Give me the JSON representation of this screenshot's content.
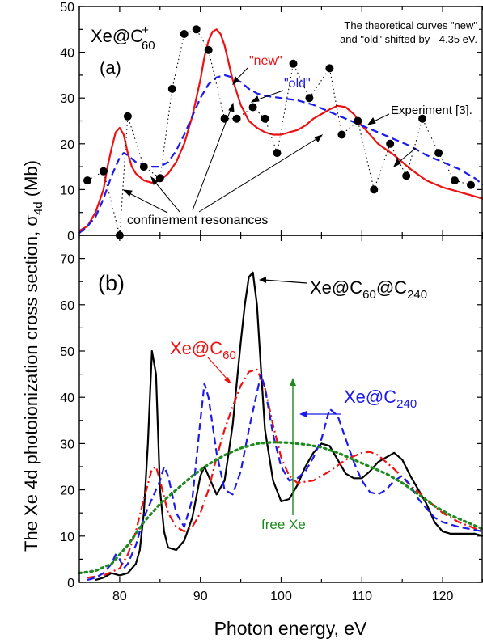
{
  "figure": {
    "ylabel_main": "The Xe 4d photoionization cross section, ",
    "ylabel_sigma": "σ",
    "ylabel_sub": "4d",
    "ylabel_unit": " (Mb)",
    "xlabel": "Photon energy, eV"
  },
  "chart_data": [
    {
      "type": "line",
      "panel_label": "(a)",
      "system_label": {
        "main": "Xe@C",
        "sub": "60",
        "sup": "+"
      },
      "note": [
        "The theoretical curves \"new\"",
        "and \"old\" shifted by - 4.35 eV."
      ],
      "xlim": [
        75,
        125
      ],
      "ylim": [
        0,
        50
      ],
      "x_ticks": [
        80,
        90,
        100,
        110,
        120
      ],
      "y_ticks": [
        0,
        10,
        20,
        30,
        40,
        50
      ],
      "legend": "inline labels",
      "grid": false,
      "series": [
        {
          "name": "\"new\"",
          "color": "#ee1111",
          "style": "solid",
          "x": [
            75,
            76,
            77,
            78,
            78.5,
            79,
            79.5,
            80,
            80.5,
            81,
            81.5,
            82,
            83,
            84,
            85,
            86,
            87,
            88,
            89,
            90,
            90.5,
            91,
            91.5,
            92,
            92.5,
            93,
            94,
            95,
            96,
            97,
            98,
            99,
            100,
            101,
            102,
            103,
            104,
            105,
            106,
            107,
            108,
            109,
            110,
            112,
            114,
            116,
            118,
            120,
            122,
            125
          ],
          "y": [
            1,
            2,
            5,
            10,
            15,
            19,
            22.5,
            23.5,
            22,
            18,
            15,
            13.5,
            12,
            11.5,
            12,
            13.5,
            16,
            20,
            26,
            34,
            39,
            42.5,
            44.5,
            45,
            44,
            41.5,
            34,
            28.5,
            25,
            23.5,
            22.5,
            22,
            22,
            22.5,
            23,
            24,
            25.5,
            26.5,
            27.5,
            28.3,
            28,
            26.5,
            24,
            20,
            17.5,
            14.5,
            12,
            10.5,
            9.5,
            8
          ]
        },
        {
          "name": "\"old\"",
          "color": "#1a1aee",
          "style": "dashed",
          "x": [
            75,
            76,
            77,
            78,
            79,
            80,
            80.5,
            81,
            82,
            83,
            84,
            85,
            86,
            87,
            88,
            89,
            90,
            91,
            92,
            93,
            94,
            95,
            96,
            97,
            98,
            100,
            102,
            104,
            106,
            108,
            110,
            112,
            114,
            116,
            118,
            120,
            122,
            124,
            125
          ],
          "y": [
            0.5,
            2,
            4,
            8,
            13,
            17,
            18,
            17.5,
            16,
            15.5,
            15,
            15,
            16,
            18.5,
            22,
            26,
            30,
            33,
            34.5,
            35,
            34.5,
            33.5,
            32,
            31,
            30.5,
            30,
            29.5,
            28.5,
            27,
            25.5,
            24,
            22.5,
            21,
            19.5,
            17.5,
            16,
            14.5,
            12.5,
            11
          ]
        },
        {
          "name": "Experiment [3].",
          "color": "#000000",
          "style": "dotted-markers",
          "x": [
            76,
            78,
            80,
            81,
            83,
            85,
            86.5,
            88,
            89.5,
            91,
            93,
            94.5,
            96.5,
            98,
            99.5,
            101.5,
            103.5,
            106,
            107.5,
            109.5,
            111.5,
            113.5,
            115.5,
            117.5,
            119.5,
            121.5,
            123.5
          ],
          "y": [
            12,
            14,
            0,
            26,
            15,
            12.5,
            32,
            44,
            45,
            40.5,
            25.5,
            25.5,
            28,
            25.5,
            18,
            37.5,
            30,
            36.5,
            22,
            25,
            10,
            20,
            13,
            25.5,
            18,
            12,
            11
          ]
        }
      ],
      "annotations": [
        {
          "text": "\"new\"",
          "color": "#ee1111"
        },
        {
          "text": "\"old\"",
          "color": "#1a1aee"
        },
        {
          "text": "Experiment [3].",
          "color": "#000000"
        },
        {
          "text": "confinement resonances",
          "color": "#000000"
        }
      ]
    },
    {
      "type": "line",
      "panel_label": "(b)",
      "xlim": [
        75,
        125
      ],
      "ylim": [
        0,
        75
      ],
      "x_ticks": [
        80,
        90,
        100,
        110,
        120
      ],
      "y_ticks": [
        0,
        10,
        20,
        30,
        40,
        50,
        60,
        70
      ],
      "legend": "inline labels",
      "grid": false,
      "series": [
        {
          "name": "Xe@C60@C240",
          "label": {
            "main": "Xe@C",
            "sub1": "60",
            "mid": "@C",
            "sub2": "240"
          },
          "color": "#000000",
          "style": "solid",
          "x": [
            77,
            78,
            79,
            80,
            81,
            82,
            82.5,
            83,
            83.5,
            84,
            84.5,
            85,
            85.5,
            86,
            87,
            88,
            89,
            90,
            90.5,
            91,
            92,
            93,
            94,
            95,
            95.5,
            96,
            96.5,
            97,
            97.5,
            98,
            99,
            100,
            101,
            102,
            103,
            104,
            105,
            106,
            107,
            108,
            109,
            110,
            111,
            112,
            113,
            114,
            115,
            116,
            117,
            118,
            119,
            120,
            121,
            122,
            123,
            124,
            125
          ],
          "y": [
            0.5,
            1,
            2,
            1.5,
            2,
            4,
            7,
            15,
            30,
            50,
            45,
            20,
            11,
            7.5,
            7,
            9,
            14,
            23,
            25,
            23,
            19,
            22,
            34,
            52,
            60,
            66,
            67,
            60,
            46,
            33,
            22,
            17.5,
            18,
            21,
            25,
            28,
            30,
            29.5,
            26.5,
            23.5,
            22.5,
            22.5,
            24,
            26,
            27,
            28,
            26.5,
            23,
            20,
            17,
            13,
            11,
            10.5,
            10.5,
            10.5,
            10.5,
            10
          ]
        },
        {
          "name": "Xe@C60",
          "label": {
            "main": "Xe@C",
            "sub": "60"
          },
          "color": "#ee1111",
          "style": "dashdot",
          "x": [
            76,
            78,
            80,
            81,
            82,
            83,
            84,
            84.5,
            85,
            86,
            87,
            88,
            89,
            90,
            91,
            92,
            93,
            94,
            95,
            96,
            97,
            98,
            99,
            100,
            101,
            102,
            104,
            106,
            108,
            110,
            111,
            112,
            114,
            116,
            118,
            120,
            122,
            125
          ],
          "y": [
            1,
            1.5,
            3,
            6,
            11,
            18,
            24.5,
            25,
            22,
            15,
            12,
            11,
            12,
            15,
            20,
            27,
            33,
            38,
            42.5,
            45.5,
            46,
            42,
            34,
            27,
            23,
            21.5,
            22,
            24,
            26.5,
            28,
            28.2,
            27.5,
            24.5,
            21,
            18,
            15,
            13,
            11
          ]
        },
        {
          "name": "Xe@C240",
          "label": {
            "main": "Xe@C",
            "sub": "240"
          },
          "color": "#1a1aee",
          "style": "dashed",
          "x": [
            76,
            77,
            78,
            79,
            79.5,
            80,
            80.5,
            81,
            82,
            83,
            84,
            85,
            85.5,
            86,
            87,
            88,
            89,
            90,
            90.5,
            91,
            92,
            93,
            94,
            95,
            96,
            97,
            97.5,
            98,
            99,
            100,
            101,
            102,
            103,
            104,
            105,
            106,
            107,
            108,
            109,
            110,
            111,
            112,
            113,
            114,
            115,
            116,
            117,
            118,
            119,
            120,
            122,
            125
          ],
          "y": [
            0.5,
            1,
            2,
            4,
            6,
            5,
            3,
            4,
            8,
            14,
            18,
            22,
            25,
            23,
            15,
            12,
            18,
            35,
            43,
            40,
            28,
            20,
            19,
            24,
            33,
            41,
            45,
            42,
            32,
            25,
            22,
            22.5,
            24,
            27,
            31,
            37.5,
            36,
            31,
            26,
            22,
            19.5,
            19,
            20,
            22,
            23,
            21,
            18,
            16,
            14,
            13,
            12,
            11
          ]
        },
        {
          "name": "free Xe",
          "color": "#1e8a1e",
          "style": "dotted",
          "x": [
            75,
            77,
            79,
            81,
            83,
            85,
            87,
            89,
            91,
            93,
            95,
            97,
            99,
            101,
            103,
            105,
            107,
            109,
            111,
            113,
            115,
            117,
            119,
            121,
            123,
            125
          ],
          "y": [
            2,
            2.5,
            4,
            8,
            13,
            17,
            20,
            23,
            25.5,
            27.5,
            29,
            30,
            30.3,
            30.2,
            29.8,
            29.2,
            28,
            26.5,
            25,
            23.5,
            21.5,
            19,
            16.5,
            14.5,
            13,
            11.5
          ]
        }
      ],
      "annotations": [
        {
          "text": "free Xe",
          "color": "#1e8a1e"
        }
      ]
    }
  ]
}
